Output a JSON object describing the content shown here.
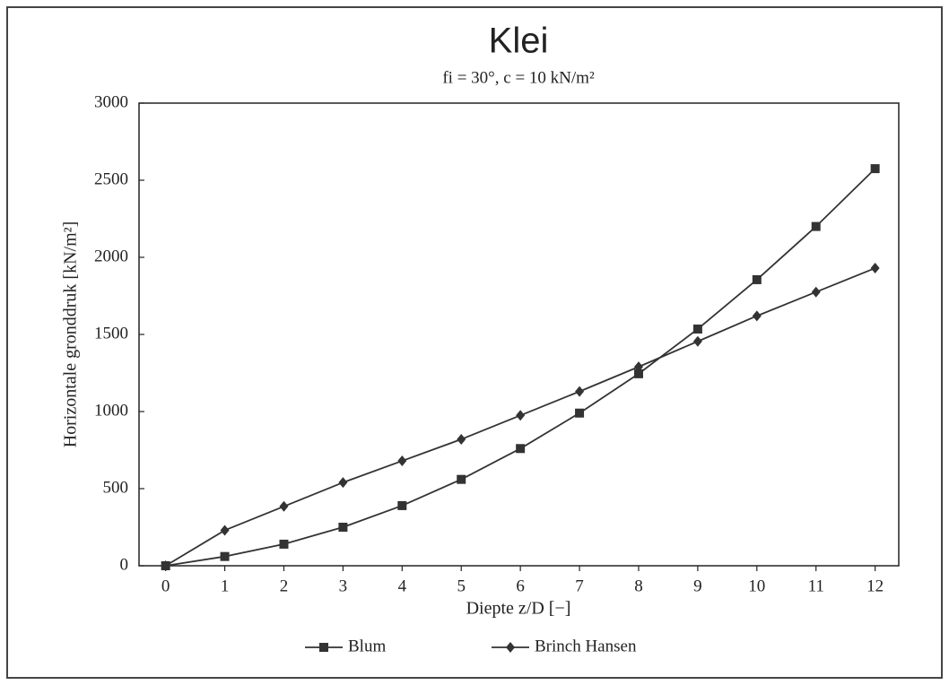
{
  "chart_data": {
    "type": "line",
    "title": "Klei",
    "subtitle": "fi = 30°, c = 10 kN/m²",
    "x_label": "Diepte z/D [−]",
    "y_label": "Horizontale gronddruk [kN/m²]",
    "x": [
      0,
      1,
      2,
      3,
      4,
      5,
      6,
      7,
      8,
      9,
      10,
      11,
      12
    ],
    "series": [
      {
        "name": "Blum",
        "color": "#333333",
        "marker": "square",
        "values": [
          0,
          60,
          140,
          250,
          390,
          560,
          760,
          990,
          1245,
          1535,
          1855,
          2200,
          2575
        ]
      },
      {
        "name": "Brinch Hansen",
        "color": "#333333",
        "marker": "diamond",
        "values": [
          0,
          230,
          385,
          540,
          680,
          820,
          975,
          1130,
          1290,
          1455,
          1620,
          1775,
          1930
        ]
      }
    ],
    "xlim": [
      -0.45,
      12.4
    ],
    "xticks": [
      0,
      1,
      2,
      3,
      4,
      5,
      6,
      7,
      8,
      9,
      10,
      11,
      12
    ],
    "ylim": [
      0,
      3000
    ],
    "yticks": [
      0,
      500,
      1000,
      1500,
      2000,
      2500,
      3000
    ],
    "grid": false,
    "legend": "bottom"
  }
}
